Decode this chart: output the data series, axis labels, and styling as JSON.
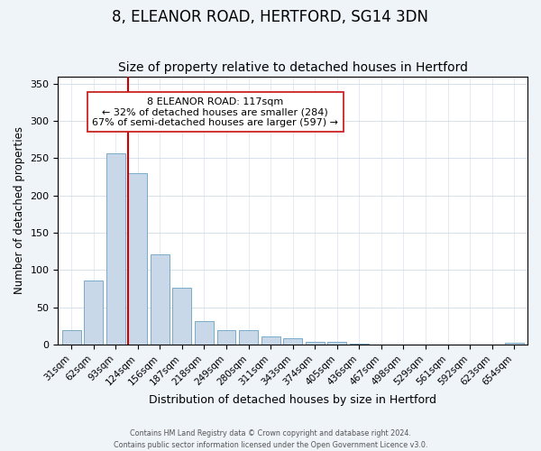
{
  "title": "8, ELEANOR ROAD, HERTFORD, SG14 3DN",
  "subtitle": "Size of property relative to detached houses in Hertford",
  "xlabel": "Distribution of detached houses by size in Hertford",
  "ylabel": "Number of detached properties",
  "bar_labels": [
    "31sqm",
    "62sqm",
    "93sqm",
    "124sqm",
    "156sqm",
    "187sqm",
    "218sqm",
    "249sqm",
    "280sqm",
    "311sqm",
    "343sqm",
    "374sqm",
    "405sqm",
    "436sqm",
    "467sqm",
    "498sqm",
    "529sqm",
    "561sqm",
    "592sqm",
    "623sqm",
    "654sqm"
  ],
  "bar_values": [
    19,
    86,
    257,
    230,
    121,
    76,
    32,
    20,
    20,
    11,
    9,
    4,
    4,
    1,
    0,
    0,
    0,
    0,
    0,
    0,
    2
  ],
  "bar_color": "#c8d8e8",
  "bar_edge_color": "#7aaac8",
  "vline_x": 2.57,
  "vline_color": "#cc0000",
  "ylim": [
    0,
    360
  ],
  "yticks": [
    0,
    50,
    100,
    150,
    200,
    250,
    300,
    350
  ],
  "annotation_title": "8 ELEANOR ROAD: 117sqm",
  "annotation_line1": "← 32% of detached houses are smaller (284)",
  "annotation_line2": "67% of semi-detached houses are larger (597) →",
  "footer_line1": "Contains HM Land Registry data © Crown copyright and database right 2024.",
  "footer_line2": "Contains public sector information licensed under the Open Government Licence v3.0.",
  "background_color": "#eff4f9",
  "plot_bg_color": "#ffffff",
  "title_fontsize": 12,
  "subtitle_fontsize": 10
}
